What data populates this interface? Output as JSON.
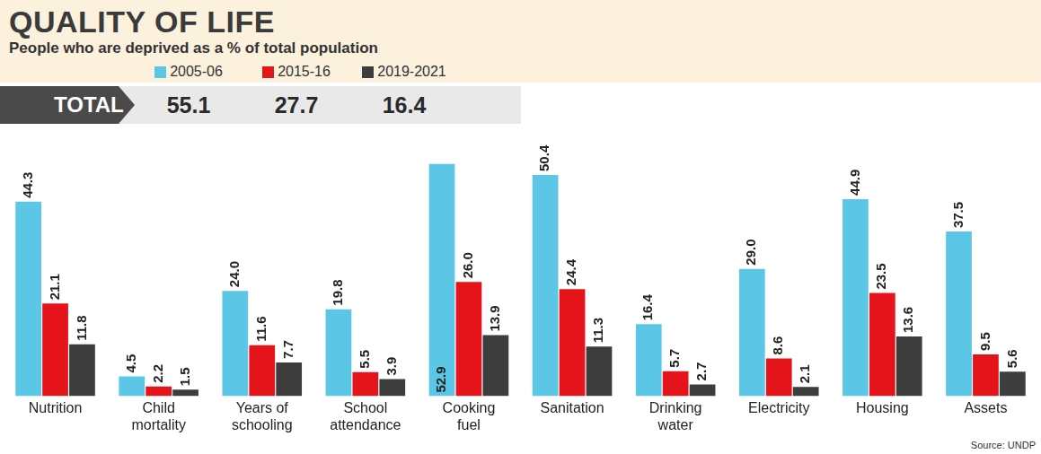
{
  "chart_data": {
    "type": "bar",
    "title": "QUALITY OF LIFE",
    "subtitle": "People who are deprived as a % of total population",
    "categories": [
      "Nutrition",
      "Child mortality",
      "Years of schooling",
      "School attendance",
      "Cooking fuel",
      "Sanitation",
      "Drinking water",
      "Electricity",
      "Housing",
      "Assets"
    ],
    "series": [
      {
        "name": "2005-06",
        "color": "#5cc6e6",
        "values": [
          44.3,
          4.5,
          24.0,
          19.8,
          52.9,
          50.4,
          16.4,
          29.0,
          44.9,
          37.5
        ],
        "value_labels": [
          "44.3",
          "4.5",
          "24.0",
          "19.8",
          "52.9",
          "50.4",
          "16.4",
          "29.0",
          "44.9",
          "37.5"
        ]
      },
      {
        "name": "2015-16",
        "color": "#e5141b",
        "values": [
          21.1,
          2.2,
          11.6,
          5.5,
          26.0,
          24.4,
          5.7,
          8.6,
          23.5,
          9.5
        ],
        "value_labels": [
          "21.1",
          "2.2",
          "11.6",
          "5.5",
          "26.0",
          "24.4",
          "5.7",
          "8.6",
          "23.5",
          "9.5"
        ]
      },
      {
        "name": "2019-2021",
        "color": "#3d3d3d",
        "values": [
          11.8,
          1.5,
          7.7,
          3.9,
          13.9,
          11.3,
          2.7,
          2.1,
          13.6,
          5.6
        ],
        "value_labels": [
          "11.8",
          "1.5",
          "7.7",
          "3.9",
          "13.9",
          "11.3",
          "2.7",
          "2.1",
          "13.6",
          "5.6"
        ]
      }
    ],
    "total": {
      "label": "TOTAL",
      "values": [
        55.1,
        27.7,
        16.4
      ]
    },
    "source": "Source: UNDP",
    "legend": "top",
    "data_labels": true,
    "tick_labels": "x",
    "grid": false
  }
}
